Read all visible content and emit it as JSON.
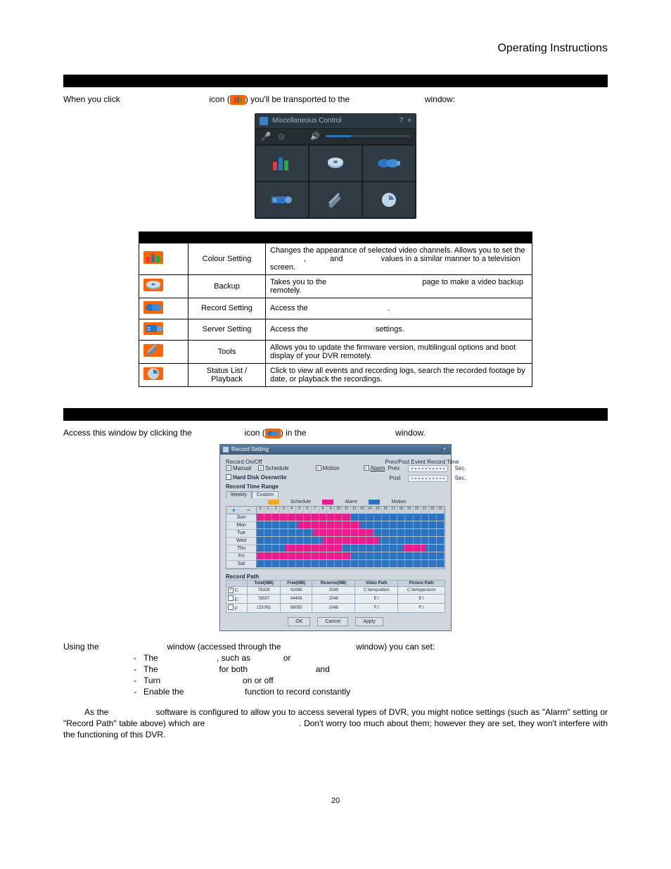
{
  "header": {
    "title": "Operating Instructions"
  },
  "intro": {
    "prefix": "When you click",
    "mid": ") you'll be transported to the",
    "suffix": "window:",
    "icon_pre": "icon ("
  },
  "misc_window": {
    "title": "Miscellaneous Control",
    "titlebar_bg": "#2a3842",
    "bg": "#303a42",
    "icons": {
      "color_setting": {
        "bars": [
          "#e23a3a",
          "#2c74c0",
          "#2aa84a"
        ]
      },
      "backup": "#8fb8d8",
      "record_setting": "#2c74c0",
      "server_setting": "#2c74c0",
      "tools": "#6f8aa0",
      "status": "#bfd6e8"
    }
  },
  "icon_colors": {
    "ff6600_bg": "#ff6600",
    "bars": [
      "#e23a3a",
      "#2c74c0",
      "#2aa84a"
    ],
    "backup": "#8fb8d8",
    "record": "#2c74c0",
    "server": "#2c74c0",
    "tools": "#6f8aa0",
    "status": "#aac8de"
  },
  "feature_table": {
    "rows": [
      {
        "name": "Colour Setting",
        "desc_parts": [
          "Changes the appearance of selected video channels. Allows you to set the ",
          ", ",
          " and ",
          " values in a similar manner to a television screen."
        ]
      },
      {
        "name": "Backup",
        "desc_parts": [
          "Takes you to the ",
          " page to make a video backup remotely."
        ]
      },
      {
        "name": "Record Setting",
        "desc_parts": [
          "Access the ",
          "."
        ]
      },
      {
        "name": "Server Setting",
        "desc_parts": [
          "Access the ",
          " settings."
        ]
      },
      {
        "name": "Tools",
        "desc_parts": [
          "Allows you to update the firmware version, multilingual options and boot display of your DVR remotely."
        ]
      },
      {
        "name": "Status List / Playback",
        "desc_parts": [
          "Click to view all events and recording logs, search the recorded footage by date, or playback the recordings."
        ]
      }
    ]
  },
  "section2_intro": {
    "p1": "Access this window by clicking the",
    "p2": "icon (",
    "p3": ") in the",
    "p4": "window."
  },
  "rec_window": {
    "title": "Record Setting",
    "labels": {
      "record_onoff": "Record On/Off",
      "manual": "Manual",
      "schedule": "Schedule",
      "motion": "Motion",
      "alarm": "Alarm",
      "hdo": "Hard Disk Overwrite",
      "rtr": "Record Time Range",
      "weekly": "Weekly",
      "custom": "Custom",
      "ppert": "Prev/Post Event Record Time",
      "prev": "Prev.",
      "post": "Post",
      "sec": "Sec.",
      "record_path": "Record Path"
    },
    "legend": [
      {
        "label": "Schedule",
        "color": "#f5a623"
      },
      {
        "label": "Alarm",
        "color": "#e91e8c"
      },
      {
        "label": "Motion",
        "color": "#2c74c0"
      }
    ],
    "days": [
      "Sun",
      "Mon",
      "Tue",
      "Wed",
      "Thu",
      "Fri",
      "Sat"
    ],
    "hours": [
      "0",
      "1",
      "2",
      "3",
      "4",
      "5",
      "6",
      "7",
      "8",
      "9",
      "10",
      "11",
      "12",
      "13",
      "14",
      "15",
      "16",
      "17",
      "18",
      "19",
      "20",
      "21",
      "22",
      "23"
    ],
    "schedule_segments": [
      [
        [
          0,
          0.5,
          "#e91e8c"
        ],
        [
          0.5,
          1,
          "#2c74c0"
        ]
      ],
      [
        [
          0,
          0.22,
          "#2c74c0"
        ],
        [
          0.22,
          0.55,
          "#e91e8c"
        ],
        [
          0.55,
          1,
          "#2c74c0"
        ]
      ],
      [
        [
          0,
          0.3,
          "#2c74c0"
        ],
        [
          0.3,
          0.62,
          "#e91e8c"
        ],
        [
          0.62,
          1,
          "#2c74c0"
        ]
      ],
      [
        [
          0,
          0.35,
          "#2c74c0"
        ],
        [
          0.35,
          0.65,
          "#e91e8c"
        ],
        [
          0.65,
          1,
          "#2c74c0"
        ]
      ],
      [
        [
          0,
          0.15,
          "#2c74c0"
        ],
        [
          0.15,
          0.45,
          "#e91e8c"
        ],
        [
          0.45,
          0.78,
          "#2c74c0"
        ],
        [
          0.78,
          0.9,
          "#e91e8c"
        ],
        [
          0.9,
          1,
          "#2c74c0"
        ]
      ],
      [
        [
          0,
          0.5,
          "#e91e8c"
        ],
        [
          0.5,
          1,
          "#2c74c0"
        ]
      ],
      [
        [
          0,
          1,
          "#2c74c0"
        ]
      ]
    ],
    "path_headers": [
      "",
      "Total(MB)",
      "Free(MB)",
      "Reserve(MB)",
      "Video Path",
      "Picture Path"
    ],
    "path_rows": [
      [
        "C:",
        "76328",
        "41086",
        "2048",
        "C:\\tempvideo\\",
        "C:\\temppicture\\"
      ],
      [
        "E:",
        "78507",
        "44406",
        "2048",
        "E:\\",
        "E:\\"
      ],
      [
        "F:",
        "131061",
        "88055",
        "2048",
        "F:\\",
        "F:\\"
      ]
    ],
    "buttons": [
      "OK",
      "Cancel",
      "Apply"
    ]
  },
  "bottom": {
    "l1_a": "Using the",
    "l1_b": "window (accessed through the",
    "l1_c": "window) you can set:",
    "bullets": [
      [
        "The ",
        ", such as ",
        " or"
      ],
      [
        "The ",
        " for both ",
        " and"
      ],
      [
        "Turn ",
        " on or off"
      ],
      [
        "Enable the ",
        " function to record constantly"
      ]
    ],
    "note_a": "As the ",
    "note_b": " software is configured to allow you to access several types of DVR, you might notice settings (such as \"Alarm\" setting or \"Record Path\" table above) which are ",
    "note_c": ". Don't worry too much about them; however they are set, they won't interfere with the functioning of this DVR."
  },
  "page_number": "20"
}
